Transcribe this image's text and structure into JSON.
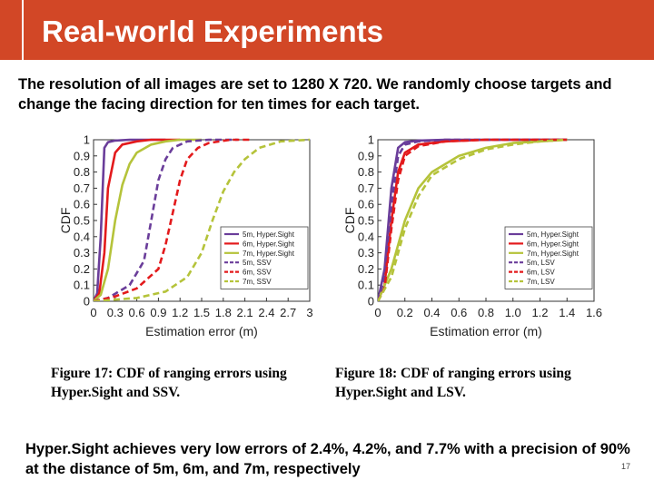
{
  "slide": {
    "title": "Real-world Experiments",
    "intro": "The resolution of all images are set to 1280 X 720. We randomly choose targets and change the facing direction for ten times for each target.",
    "summary": "Hyper.Sight achieves very low errors of 2.4%, 4.2%, and 7.7% with a precision of 90% at the distance of 5m, 6m, and 7m, respectively",
    "page_number": "17",
    "accent_color": "#d24726"
  },
  "figures": [
    {
      "caption": "Figure 17: CDF of ranging errors using Hyper.Sight and SSV."
    },
    {
      "caption": "Figure 18: CDF of ranging errors using Hyper.Sight and LSV."
    }
  ],
  "chart_data": [
    {
      "type": "line",
      "xlabel": "Estimation error (m)",
      "ylabel": "CDF",
      "xlim": [
        0,
        3
      ],
      "ylim": [
        0,
        1
      ],
      "xticks": [
        "0",
        "0.3",
        "0.6",
        "0.9",
        "1.2",
        "1.5",
        "1.8",
        "2.1",
        "2.4",
        "2.7",
        "3"
      ],
      "yticks": [
        "0",
        "0.1",
        "0.2",
        "0.3",
        "0.4",
        "0.5",
        "0.6",
        "0.7",
        "0.8",
        "0.9",
        "1"
      ],
      "legend_position": "bottom-right",
      "series": [
        {
          "name": "5m, Hyper.Sight",
          "color": "#6a3d9a",
          "dash": false,
          "x": [
            0,
            0.05,
            0.1,
            0.15,
            0.2,
            0.3,
            0.5,
            1.0
          ],
          "y": [
            0,
            0.05,
            0.4,
            0.95,
            0.985,
            0.995,
            1,
            1
          ]
        },
        {
          "name": "6m, Hyper.Sight",
          "color": "#e31a1c",
          "dash": false,
          "x": [
            0,
            0.08,
            0.15,
            0.2,
            0.3,
            0.4,
            0.6,
            0.8,
            1.2
          ],
          "y": [
            0,
            0.05,
            0.3,
            0.7,
            0.92,
            0.97,
            0.99,
            1,
            1
          ]
        },
        {
          "name": "7m, Hyper.Sight",
          "color": "#b5c33a",
          "dash": false,
          "x": [
            0,
            0.1,
            0.2,
            0.3,
            0.4,
            0.5,
            0.6,
            0.8,
            1.0,
            1.2,
            1.5
          ],
          "y": [
            0,
            0.04,
            0.2,
            0.5,
            0.72,
            0.85,
            0.92,
            0.97,
            0.99,
            1,
            1
          ]
        },
        {
          "name": "5m, SSV",
          "color": "#6a3d9a",
          "dash": true,
          "x": [
            0,
            0.2,
            0.5,
            0.7,
            0.8,
            0.9,
            1.0,
            1.1,
            1.3,
            1.6,
            2.0
          ],
          "y": [
            0,
            0.02,
            0.1,
            0.25,
            0.5,
            0.75,
            0.88,
            0.95,
            0.99,
            1,
            1
          ]
        },
        {
          "name": "6m, SSV",
          "color": "#e31a1c",
          "dash": true,
          "x": [
            0,
            0.3,
            0.6,
            0.9,
            1.0,
            1.1,
            1.2,
            1.3,
            1.45,
            1.6,
            1.9,
            2.2
          ],
          "y": [
            0,
            0.03,
            0.08,
            0.2,
            0.35,
            0.55,
            0.75,
            0.88,
            0.95,
            0.98,
            1,
            1
          ]
        },
        {
          "name": "7m, SSV",
          "color": "#b5c33a",
          "dash": true,
          "x": [
            0,
            0.6,
            1.0,
            1.3,
            1.5,
            1.65,
            1.8,
            1.95,
            2.1,
            2.3,
            2.6,
            3.0
          ],
          "y": [
            0,
            0.02,
            0.06,
            0.15,
            0.3,
            0.5,
            0.68,
            0.8,
            0.88,
            0.95,
            0.99,
            1
          ]
        }
      ]
    },
    {
      "type": "line",
      "xlabel": "Estimation error (m)",
      "ylabel": "CDF",
      "xlim": [
        0,
        1.6
      ],
      "ylim": [
        0,
        1
      ],
      "xticks": [
        "0",
        "0.2",
        "0.4",
        "0.6",
        "0.8",
        "1.0",
        "1.2",
        "1.4",
        "1.6"
      ],
      "yticks": [
        "0",
        "0.1",
        "0.2",
        "0.3",
        "0.4",
        "0.5",
        "0.6",
        "0.7",
        "0.8",
        "0.9",
        "1"
      ],
      "legend_position": "bottom-right",
      "series": [
        {
          "name": "5m, Hyper.Sight",
          "color": "#6a3d9a",
          "dash": false,
          "x": [
            0,
            0.05,
            0.1,
            0.15,
            0.2,
            0.3,
            0.5,
            1.0,
            1.4
          ],
          "y": [
            0,
            0.2,
            0.7,
            0.95,
            0.985,
            0.995,
            1,
            1,
            1
          ]
        },
        {
          "name": "6m, Hyper.Sight",
          "color": "#e31a1c",
          "dash": false,
          "x": [
            0,
            0.05,
            0.1,
            0.15,
            0.2,
            0.3,
            0.5,
            0.8,
            1.4
          ],
          "y": [
            0,
            0.1,
            0.5,
            0.8,
            0.92,
            0.97,
            0.99,
            1,
            1
          ]
        },
        {
          "name": "7m, Hyper.Sight",
          "color": "#b5c33a",
          "dash": false,
          "x": [
            0,
            0.1,
            0.2,
            0.3,
            0.4,
            0.6,
            0.8,
            1.0,
            1.2,
            1.4
          ],
          "y": [
            0,
            0.2,
            0.5,
            0.7,
            0.8,
            0.9,
            0.95,
            0.98,
            0.99,
            1
          ]
        },
        {
          "name": "5m, LSV",
          "color": "#6a3d9a",
          "dash": true,
          "x": [
            0,
            0.05,
            0.1,
            0.15,
            0.2,
            0.3,
            0.5,
            1.0,
            1.4
          ],
          "y": [
            0,
            0.15,
            0.6,
            0.9,
            0.97,
            0.99,
            1,
            1,
            1
          ]
        },
        {
          "name": "6m, LSV",
          "color": "#e31a1c",
          "dash": true,
          "x": [
            0,
            0.05,
            0.1,
            0.15,
            0.2,
            0.3,
            0.5,
            0.8,
            1.4
          ],
          "y": [
            0,
            0.08,
            0.45,
            0.75,
            0.9,
            0.96,
            0.99,
            1,
            1
          ]
        },
        {
          "name": "7m, LSV",
          "color": "#b5c33a",
          "dash": true,
          "x": [
            0,
            0.1,
            0.2,
            0.3,
            0.4,
            0.6,
            0.8,
            1.0,
            1.2,
            1.4
          ],
          "y": [
            0,
            0.15,
            0.45,
            0.65,
            0.78,
            0.88,
            0.94,
            0.97,
            0.99,
            1
          ]
        }
      ]
    }
  ]
}
